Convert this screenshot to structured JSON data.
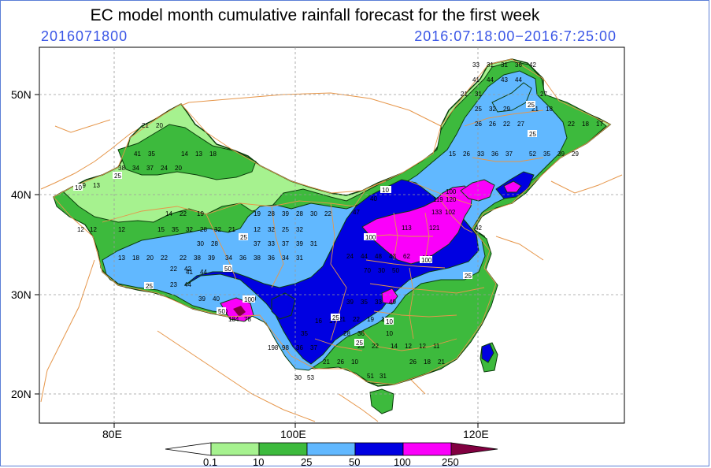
{
  "title": "EC model month cumulative rainfall forecast for the first week",
  "init_time": "2016071800",
  "valid_period": "2016:07:18:00−2016:7:25:00",
  "axes": {
    "lon_ticks": [
      "80E",
      "100E",
      "120E"
    ],
    "lat_ticks": [
      "50N",
      "40N",
      "30N",
      "20N"
    ]
  },
  "legend": {
    "levels": [
      "0.1",
      "10",
      "25",
      "50",
      "100",
      "250"
    ],
    "colors": {
      "below": "#ffffff",
      "0.1-10": "#a6f28f",
      "10-25": "#3dba3d",
      "25-50": "#61b8ff",
      "50-100": "#0000e1",
      "100-250": "#fa00fa",
      "above": "#810040"
    }
  },
  "map_colors": {
    "province_border": "#e6964a",
    "grid": "#9a9a9a",
    "contour": "#0b3d0b"
  },
  "station_values": {
    "north_east": [
      "33",
      "31",
      "31",
      "36",
      "42",
      "41",
      "44",
      "43",
      "44",
      "21",
      "31",
      "27",
      "25",
      "32",
      "29",
      "26",
      "26",
      "22",
      "27",
      "21",
      "18",
      "22",
      "18",
      "17",
      "15",
      "26",
      "33",
      "36",
      "37",
      "52",
      "35",
      "39",
      "29"
    ],
    "north_china": [
      "10",
      "100",
      "119",
      "120",
      "133",
      "102",
      "121",
      "113",
      "42",
      "40",
      "47"
    ],
    "central": [
      "100",
      "24",
      "44",
      "48",
      "43",
      "62",
      "70",
      "30",
      "50",
      "100"
    ],
    "south": [
      "39",
      "35",
      "33",
      "49",
      "21",
      "22",
      "19",
      "15",
      "14",
      "12",
      "12",
      "11",
      "26",
      "18",
      "21",
      "51",
      "31",
      "30",
      "53"
    ],
    "tibet": [
      "22",
      "42",
      "23",
      "44",
      "39",
      "40",
      "100",
      "50",
      "184",
      "78"
    ],
    "southwest": [
      "198",
      "98",
      "36",
      "37",
      "35",
      "16",
      "17",
      "28",
      "36",
      "22",
      "10",
      "21",
      "26",
      "10",
      "25"
    ],
    "xinjiang": [
      "21",
      "20",
      "41",
      "35",
      "38",
      "34",
      "37",
      "24",
      "20",
      "14",
      "13",
      "18",
      "19",
      "13",
      "12",
      "12"
    ],
    "qinghai": [
      "14",
      "22",
      "19",
      "15",
      "35",
      "32",
      "28",
      "32",
      "21",
      "12",
      "13",
      "18",
      "20",
      "22",
      "30",
      "28",
      "34",
      "22",
      "38",
      "39",
      "36",
      "41",
      "44"
    ],
    "sichuan": [
      "19",
      "28",
      "39",
      "28",
      "30",
      "22",
      "12",
      "32",
      "25",
      "32",
      "37",
      "33",
      "37",
      "39",
      "31",
      "38",
      "36",
      "34",
      "31"
    ],
    "contour_labels": [
      "10",
      "10",
      "25",
      "25",
      "25",
      "50",
      "25",
      "100",
      "50",
      "100",
      "10",
      "25",
      "100",
      "25",
      "25",
      "25"
    ]
  }
}
